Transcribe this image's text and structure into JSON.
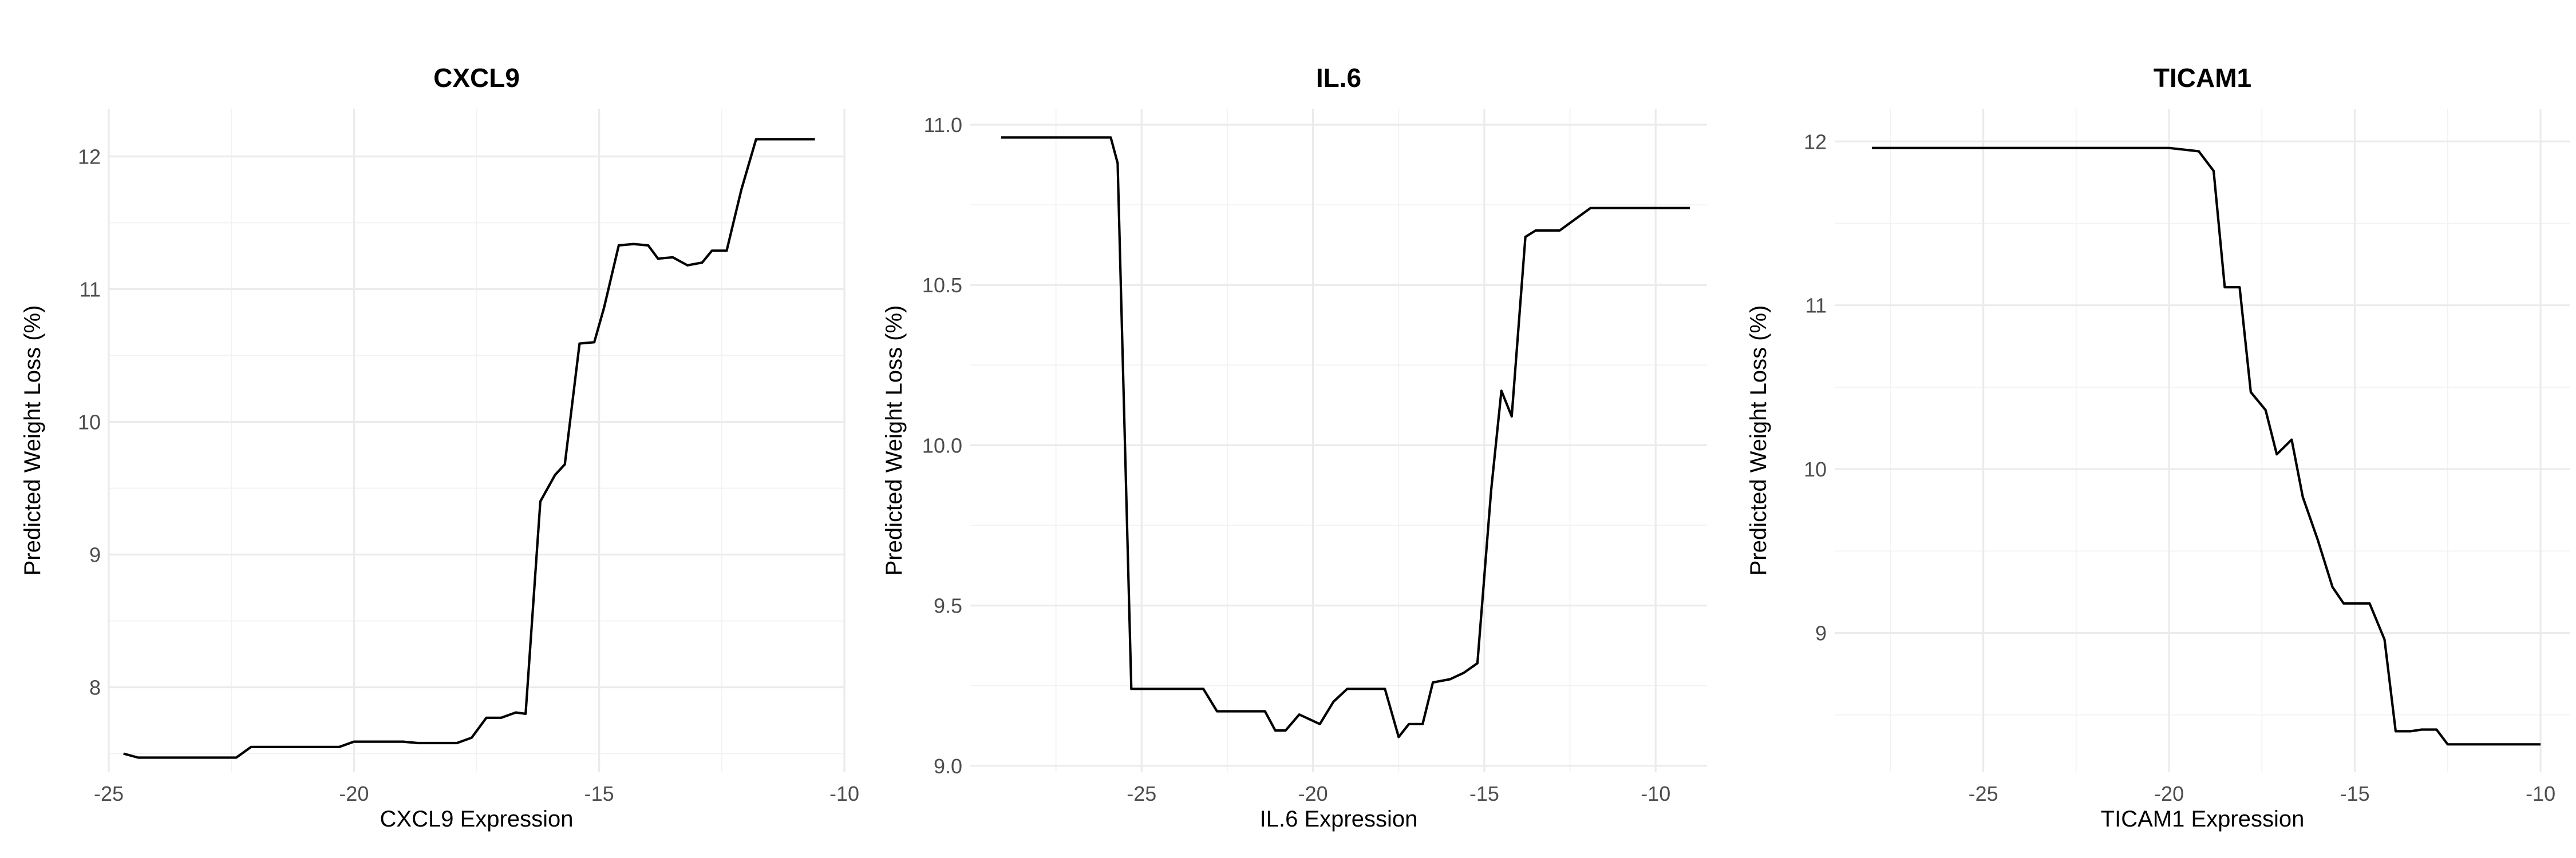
{
  "chart_data": [
    {
      "type": "line",
      "title": "CXCL9",
      "xlabel": "CXCL9 Expression",
      "ylabel": "Predicted Weight Loss (%)",
      "xlim": [
        -25.0,
        -10.0
      ],
      "ylim": [
        7.36,
        12.36
      ],
      "xticks": [
        -25,
        -20,
        -15,
        -10
      ],
      "xtick_labels": [
        "-25",
        "-20",
        "-15",
        "-10"
      ],
      "yticks": [
        8,
        9,
        10,
        11,
        12
      ],
      "ytick_labels": [
        "8",
        "9",
        "10",
        "11",
        "12"
      ],
      "grid": true,
      "series": [
        {
          "x": [
            -24.7,
            -24.4,
            -22.4,
            -22.1,
            -20.3,
            -20.0,
            -19.0,
            -18.7,
            -17.9,
            -17.6,
            -17.3,
            -17.0,
            -16.7,
            -16.5,
            -16.2,
            -15.9,
            -15.7,
            -15.4,
            -15.1,
            -14.9,
            -14.6,
            -14.3,
            -14.0,
            -13.8,
            -13.5,
            -13.2,
            -12.9,
            -12.7,
            -12.4,
            -12.1,
            -11.8,
            -11.5,
            -10.6
          ],
          "y": [
            7.5,
            7.47,
            7.47,
            7.55,
            7.55,
            7.59,
            7.59,
            7.58,
            7.58,
            7.62,
            7.77,
            7.77,
            7.81,
            7.8,
            9.4,
            9.6,
            9.68,
            10.59,
            10.6,
            10.86,
            11.33,
            11.34,
            11.33,
            11.23,
            11.24,
            11.18,
            11.2,
            11.29,
            11.29,
            11.75,
            12.13,
            12.13,
            12.13
          ]
        }
      ]
    },
    {
      "type": "line",
      "title": "IL.6",
      "xlabel": "IL.6 Expression",
      "ylabel": "Predicted Weight Loss (%)",
      "xlim": [
        -30.0,
        -8.5
      ],
      "ylim": [
        8.98,
        11.05
      ],
      "xticks": [
        -25,
        -20,
        -15,
        -10
      ],
      "xtick_labels": [
        "-25",
        "-20",
        "-15",
        "-10"
      ],
      "yticks": [
        9.0,
        9.5,
        10.0,
        10.5,
        11.0
      ],
      "ytick_labels": [
        "9.0",
        "9.5",
        "10.0",
        "10.5",
        "11.0"
      ],
      "grid": true,
      "series": [
        {
          "x": [
            -29.1,
            -25.9,
            -25.7,
            -25.3,
            -23.2,
            -22.8,
            -21.4,
            -21.1,
            -20.8,
            -20.4,
            -19.8,
            -19.4,
            -19.0,
            -18.7,
            -17.9,
            -17.5,
            -17.2,
            -16.8,
            -16.5,
            -16.0,
            -15.6,
            -15.2,
            -14.8,
            -14.5,
            -14.2,
            -13.8,
            -13.5,
            -13.1,
            -12.8,
            -11.9,
            -11.6,
            -9.0
          ],
          "y": [
            10.96,
            10.96,
            10.88,
            9.24,
            9.24,
            9.17,
            9.17,
            9.11,
            9.11,
            9.16,
            9.13,
            9.2,
            9.24,
            9.24,
            9.24,
            9.09,
            9.13,
            9.13,
            9.26,
            9.27,
            9.29,
            9.32,
            9.86,
            10.17,
            10.09,
            10.65,
            10.67,
            10.67,
            10.67,
            10.74,
            10.74,
            10.74
          ]
        }
      ]
    },
    {
      "type": "line",
      "title": "TICAM1",
      "xlabel": "TICAM1 Expression",
      "ylabel": "Predicted Weight Loss (%)",
      "xlim": [
        -29.0,
        -9.2
      ],
      "ylim": [
        8.15,
        12.2
      ],
      "xticks": [
        -25,
        -20,
        -15,
        -10
      ],
      "xtick_labels": [
        "-25",
        "-20",
        "-15",
        "-10"
      ],
      "yticks": [
        9,
        10,
        11,
        12
      ],
      "ytick_labels": [
        "9",
        "10",
        "11",
        "12"
      ],
      "grid": true,
      "series": [
        {
          "x": [
            -28.0,
            -20.0,
            -19.6,
            -19.2,
            -18.8,
            -18.5,
            -18.1,
            -17.8,
            -17.4,
            -17.1,
            -16.7,
            -16.4,
            -16.0,
            -15.6,
            -15.3,
            -14.9,
            -14.6,
            -14.2,
            -13.9,
            -13.5,
            -13.2,
            -12.8,
            -12.5,
            -10.0
          ],
          "y": [
            11.96,
            11.96,
            11.95,
            11.94,
            11.82,
            11.11,
            11.11,
            10.47,
            10.36,
            10.09,
            10.18,
            9.83,
            9.57,
            9.28,
            9.18,
            9.18,
            9.18,
            8.96,
            8.4,
            8.4,
            8.41,
            8.41,
            8.32,
            8.32
          ]
        }
      ]
    }
  ]
}
